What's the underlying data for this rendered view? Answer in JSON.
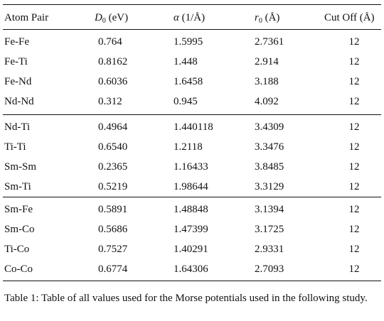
{
  "table": {
    "headers": {
      "atom_pair": "Atom Pair",
      "d0_symbol": "D",
      "d0_sub": "0",
      "d0_unit": "(eV)",
      "alpha_symbol": "α",
      "alpha_unit": "(1/Å)",
      "r0_symbol": "r",
      "r0_sub": "0",
      "r0_unit": "(Å)",
      "cutoff": "Cut Off (Å)"
    },
    "groups": [
      [
        [
          "Fe-Fe",
          "0.764",
          "1.5995",
          "2.7361",
          "12"
        ],
        [
          "Fe-Ti",
          "0.8162",
          "1.448",
          "2.914",
          "12"
        ],
        [
          "Fe-Nd",
          "0.6036",
          "1.6458",
          "3.188",
          "12"
        ],
        [
          "Nd-Nd",
          "0.312",
          "0.945",
          "4.092",
          "12"
        ]
      ],
      [
        [
          "Nd-Ti",
          "0.4964",
          "1.440118",
          "3.4309",
          "12"
        ],
        [
          "Ti-Ti",
          "0.6540",
          "1.2118",
          "3.3476",
          "12"
        ],
        [
          "Sm-Sm",
          "0.2365",
          "1.16433",
          "3.8485",
          "12"
        ],
        [
          "Sm-Ti",
          "0.5219",
          "1.98644",
          "3.3129",
          "12"
        ]
      ],
      [
        [
          "Sm-Fe",
          "0.5891",
          "1.48848",
          "3.1394",
          "12"
        ],
        [
          "Sm-Co",
          "0.5686",
          "1.47399",
          "3.1725",
          "12"
        ],
        [
          "Ti-Co",
          "0.7527",
          "1.40291",
          "2.9331",
          "12"
        ],
        [
          "Co-Co",
          "0.6774",
          "1.64306",
          "2.7093",
          "12"
        ]
      ]
    ]
  },
  "caption": "Table 1: Table of all values used for the Morse potentials used in the following study."
}
